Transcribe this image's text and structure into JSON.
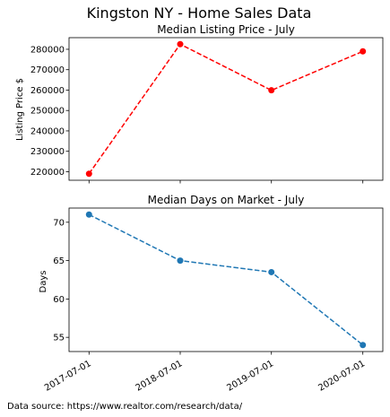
{
  "figure": {
    "suptitle": "Kingston NY - Home Sales Data",
    "footnote": "Data source: https://www.realtor.com/research/data/"
  },
  "chart_data": [
    {
      "type": "line",
      "title": "Median Listing Price - July",
      "xlabel": "",
      "ylabel": "Listing Price $",
      "x": [
        "2017-07-01",
        "2018-07-01",
        "2019-07-01",
        "2020-07-01"
      ],
      "series": [
        {
          "values": [
            219000,
            282500,
            259900,
            279000
          ],
          "color": "#ff0000",
          "linestyle": "dashed",
          "marker": "circle"
        }
      ],
      "yticks": [
        220000,
        230000,
        240000,
        250000,
        260000,
        270000,
        280000
      ],
      "ylim": [
        215800,
        285700
      ],
      "x_tick_labels_shown": false,
      "grid": false
    },
    {
      "type": "line",
      "title": "Median Days on Market - July",
      "xlabel": "",
      "ylabel": "Days",
      "x": [
        "2017-07-01",
        "2018-07-01",
        "2019-07-01",
        "2020-07-01"
      ],
      "x_tick_labels": [
        "2017-07-01",
        "2018-07-01",
        "2019-07-01",
        "2020-07-01"
      ],
      "series": [
        {
          "values": [
            71,
            65,
            63.5,
            54
          ],
          "color": "#1f77b4",
          "linestyle": "dashed",
          "marker": "circle"
        }
      ],
      "yticks": [
        55,
        60,
        65,
        70
      ],
      "ylim": [
        53.15,
        71.85
      ],
      "grid": false
    }
  ]
}
